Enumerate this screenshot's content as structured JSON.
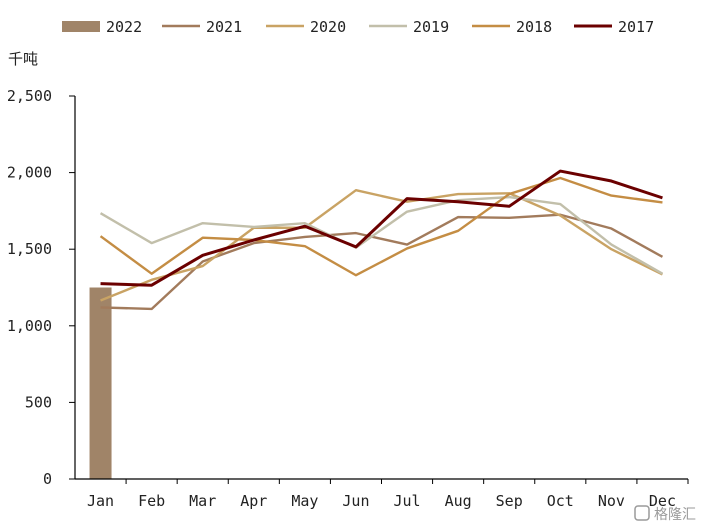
{
  "chart_data": {
    "type": "line",
    "ylabel": "千吨",
    "ylim": [
      0,
      2500
    ],
    "yticks": [
      "0",
      "500",
      "1,000",
      "1,500",
      "2,000",
      "2,500"
    ],
    "categories": [
      "Jan",
      "Feb",
      "Mar",
      "Apr",
      "May",
      "Jun",
      "Jul",
      "Aug",
      "Sep",
      "Oct",
      "Nov",
      "Dec"
    ],
    "legend_position": "top",
    "grid": false,
    "series": [
      {
        "name": "2022",
        "kind": "bar",
        "color": "#a08468",
        "values": [
          1250,
          null,
          null,
          null,
          null,
          null,
          null,
          null,
          null,
          null,
          null,
          null
        ]
      },
      {
        "name": "2021",
        "kind": "line",
        "color": "#a27b5c",
        "values": [
          1120,
          1110,
          1420,
          1540,
          1580,
          1605,
          1530,
          1710,
          1705,
          1725,
          1635,
          1450
        ]
      },
      {
        "name": "2020",
        "kind": "line",
        "color": "#c9a364",
        "values": [
          1165,
          1300,
          1390,
          1640,
          1640,
          1885,
          1810,
          1860,
          1865,
          1720,
          1500,
          1335
        ]
      },
      {
        "name": "2019",
        "kind": "line",
        "color": "#c2bfaa",
        "values": [
          1735,
          1540,
          1670,
          1645,
          1670,
          1510,
          1745,
          1820,
          1840,
          1795,
          1530,
          1340
        ]
      },
      {
        "name": "2018",
        "kind": "line",
        "color": "#c48d44",
        "values": [
          1585,
          1340,
          1575,
          1560,
          1520,
          1330,
          1505,
          1620,
          1860,
          1965,
          1850,
          1805
        ]
      },
      {
        "name": "2017",
        "kind": "line",
        "color": "#6b0000",
        "values": [
          1275,
          1265,
          1460,
          1560,
          1650,
          1515,
          1830,
          1810,
          1780,
          2010,
          1945,
          1835
        ]
      }
    ]
  },
  "watermark": "格隆汇"
}
